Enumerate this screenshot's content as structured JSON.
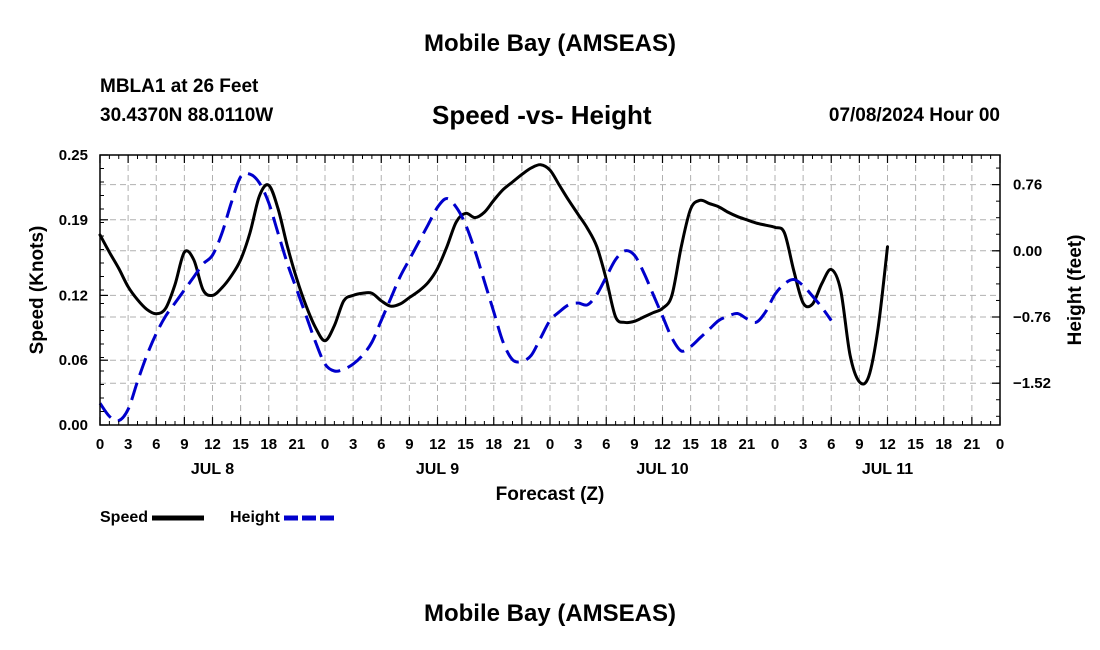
{
  "header": {
    "title": "Mobile Bay (AMSEAS)",
    "station": "MBLA1 at 26 Feet",
    "coords": "30.4370N  88.0110W",
    "subtitle": "Speed -vs- Height",
    "run_time": "07/08/2024 Hour 00"
  },
  "footer": {
    "title": "Mobile Bay (AMSEAS)"
  },
  "chart_data": {
    "type": "line",
    "xlabel": "Forecast (Z)",
    "ylabel_left": "Speed (Knots)",
    "ylabel_right": "Height (feet)",
    "x_range_hours": [
      0,
      96
    ],
    "x_tick_labels": [
      "0",
      "3",
      "6",
      "9",
      "12",
      "15",
      "18",
      "21",
      "0",
      "3",
      "6",
      "9",
      "12",
      "15",
      "18",
      "21",
      "0",
      "3",
      "6",
      "9",
      "12",
      "15",
      "18",
      "21",
      "0",
      "3",
      "6",
      "9",
      "12",
      "15",
      "18",
      "21",
      "0"
    ],
    "day_labels": [
      {
        "label": "JUL 8",
        "hour": 12
      },
      {
        "label": "JUL 9",
        "hour": 36
      },
      {
        "label": "JUL 10",
        "hour": 60
      },
      {
        "label": "JUL 11",
        "hour": 84
      }
    ],
    "left_axis": {
      "min": 0.0,
      "max": 0.25,
      "ticks": [
        0.0,
        0.06,
        0.12,
        0.19,
        0.25
      ],
      "tick_labels": [
        "0.00",
        "0.06",
        "0.12",
        "0.19",
        "0.25"
      ]
    },
    "right_axis": {
      "min": -2.0,
      "max": 1.1,
      "ticks": [
        0.76,
        0.0,
        -0.76,
        -1.52
      ],
      "tick_labels": [
        "0.76",
        "0.00",
        "−0.76",
        "−1.52"
      ]
    },
    "grid": true,
    "legend_position": "bottom-left",
    "series": [
      {
        "name": "Speed",
        "axis": "left",
        "color": "#000000",
        "style": "solid",
        "points": [
          [
            0,
            0.176
          ],
          [
            1,
            0.16
          ],
          [
            2,
            0.145
          ],
          [
            3,
            0.128
          ],
          [
            4,
            0.116
          ],
          [
            5,
            0.107
          ],
          [
            6,
            0.103
          ],
          [
            7,
            0.108
          ],
          [
            8,
            0.13
          ],
          [
            9,
            0.16
          ],
          [
            10,
            0.153
          ],
          [
            11,
            0.125
          ],
          [
            12,
            0.12
          ],
          [
            13,
            0.127
          ],
          [
            14,
            0.138
          ],
          [
            15,
            0.153
          ],
          [
            16,
            0.178
          ],
          [
            17,
            0.212
          ],
          [
            18,
            0.222
          ],
          [
            19,
            0.2
          ],
          [
            20,
            0.165
          ],
          [
            21,
            0.135
          ],
          [
            22,
            0.11
          ],
          [
            23,
            0.09
          ],
          [
            24,
            0.078
          ],
          [
            25,
            0.092
          ],
          [
            26,
            0.115
          ],
          [
            27,
            0.12
          ],
          [
            28,
            0.122
          ],
          [
            29,
            0.122
          ],
          [
            30,
            0.115
          ],
          [
            31,
            0.11
          ],
          [
            32,
            0.112
          ],
          [
            33,
            0.118
          ],
          [
            34,
            0.124
          ],
          [
            35,
            0.132
          ],
          [
            36,
            0.145
          ],
          [
            37,
            0.165
          ],
          [
            38,
            0.188
          ],
          [
            39,
            0.196
          ],
          [
            40,
            0.192
          ],
          [
            41,
            0.197
          ],
          [
            42,
            0.208
          ],
          [
            43,
            0.218
          ],
          [
            44,
            0.225
          ],
          [
            45,
            0.232
          ],
          [
            46,
            0.238
          ],
          [
            47,
            0.241
          ],
          [
            48,
            0.236
          ],
          [
            49,
            0.222
          ],
          [
            50,
            0.208
          ],
          [
            51,
            0.195
          ],
          [
            52,
            0.182
          ],
          [
            53,
            0.165
          ],
          [
            54,
            0.135
          ],
          [
            55,
            0.1
          ],
          [
            56,
            0.095
          ],
          [
            57,
            0.096
          ],
          [
            58,
            0.1
          ],
          [
            59,
            0.104
          ],
          [
            60,
            0.108
          ],
          [
            61,
            0.12
          ],
          [
            62,
            0.165
          ],
          [
            63,
            0.2
          ],
          [
            64,
            0.208
          ],
          [
            65,
            0.205
          ],
          [
            66,
            0.202
          ],
          [
            67,
            0.197
          ],
          [
            68,
            0.193
          ],
          [
            69,
            0.19
          ],
          [
            70,
            0.187
          ],
          [
            71,
            0.185
          ],
          [
            72,
            0.183
          ],
          [
            73,
            0.178
          ],
          [
            74,
            0.143
          ],
          [
            75,
            0.113
          ],
          [
            76,
            0.112
          ],
          [
            77,
            0.131
          ],
          [
            78,
            0.144
          ],
          [
            79,
            0.125
          ],
          [
            80,
            0.065
          ],
          [
            81,
            0.04
          ],
          [
            82,
            0.045
          ],
          [
            83,
            0.09
          ],
          [
            84,
            0.165
          ]
        ]
      },
      {
        "name": "Height",
        "axis": "right",
        "color": "#0000cc",
        "style": "dashed",
        "points": [
          [
            0,
            -1.75
          ],
          [
            1,
            -1.9
          ],
          [
            2,
            -1.95
          ],
          [
            3,
            -1.82
          ],
          [
            4,
            -1.5
          ],
          [
            5,
            -1.2
          ],
          [
            6,
            -0.95
          ],
          [
            7,
            -0.75
          ],
          [
            8,
            -0.6
          ],
          [
            9,
            -0.45
          ],
          [
            10,
            -0.3
          ],
          [
            11,
            -0.15
          ],
          [
            12,
            -0.05
          ],
          [
            13,
            0.2
          ],
          [
            14,
            0.55
          ],
          [
            15,
            0.85
          ],
          [
            16,
            0.88
          ],
          [
            17,
            0.78
          ],
          [
            18,
            0.55
          ],
          [
            19,
            0.2
          ],
          [
            20,
            -0.15
          ],
          [
            21,
            -0.45
          ],
          [
            22,
            -0.75
          ],
          [
            23,
            -1.05
          ],
          [
            24,
            -1.3
          ],
          [
            25,
            -1.38
          ],
          [
            26,
            -1.36
          ],
          [
            27,
            -1.3
          ],
          [
            28,
            -1.2
          ],
          [
            29,
            -1.05
          ],
          [
            30,
            -0.8
          ],
          [
            31,
            -0.55
          ],
          [
            32,
            -0.3
          ],
          [
            33,
            -0.1
          ],
          [
            34,
            0.1
          ],
          [
            35,
            0.3
          ],
          [
            36,
            0.5
          ],
          [
            37,
            0.6
          ],
          [
            38,
            0.5
          ],
          [
            39,
            0.3
          ],
          [
            40,
            0.0
          ],
          [
            41,
            -0.35
          ],
          [
            42,
            -0.7
          ],
          [
            43,
            -1.05
          ],
          [
            44,
            -1.25
          ],
          [
            45,
            -1.27
          ],
          [
            46,
            -1.2
          ],
          [
            47,
            -1.0
          ],
          [
            48,
            -0.8
          ],
          [
            49,
            -0.7
          ],
          [
            50,
            -0.62
          ],
          [
            51,
            -0.6
          ],
          [
            52,
            -0.62
          ],
          [
            53,
            -0.5
          ],
          [
            54,
            -0.3
          ],
          [
            55,
            -0.1
          ],
          [
            56,
            0.0
          ],
          [
            57,
            -0.05
          ],
          [
            58,
            -0.25
          ],
          [
            59,
            -0.5
          ],
          [
            60,
            -0.75
          ],
          [
            61,
            -1.0
          ],
          [
            62,
            -1.15
          ],
          [
            63,
            -1.1
          ],
          [
            64,
            -1.0
          ],
          [
            65,
            -0.9
          ],
          [
            66,
            -0.8
          ],
          [
            67,
            -0.75
          ],
          [
            68,
            -0.72
          ],
          [
            69,
            -0.78
          ],
          [
            70,
            -0.82
          ],
          [
            71,
            -0.7
          ],
          [
            72,
            -0.5
          ],
          [
            73,
            -0.38
          ],
          [
            74,
            -0.33
          ],
          [
            75,
            -0.4
          ],
          [
            76,
            -0.52
          ],
          [
            77,
            -0.65
          ],
          [
            78,
            -0.8
          ]
        ]
      }
    ]
  },
  "colors": {
    "speed": "#000000",
    "height": "#0000cc",
    "grid": "#b0b0b0"
  }
}
